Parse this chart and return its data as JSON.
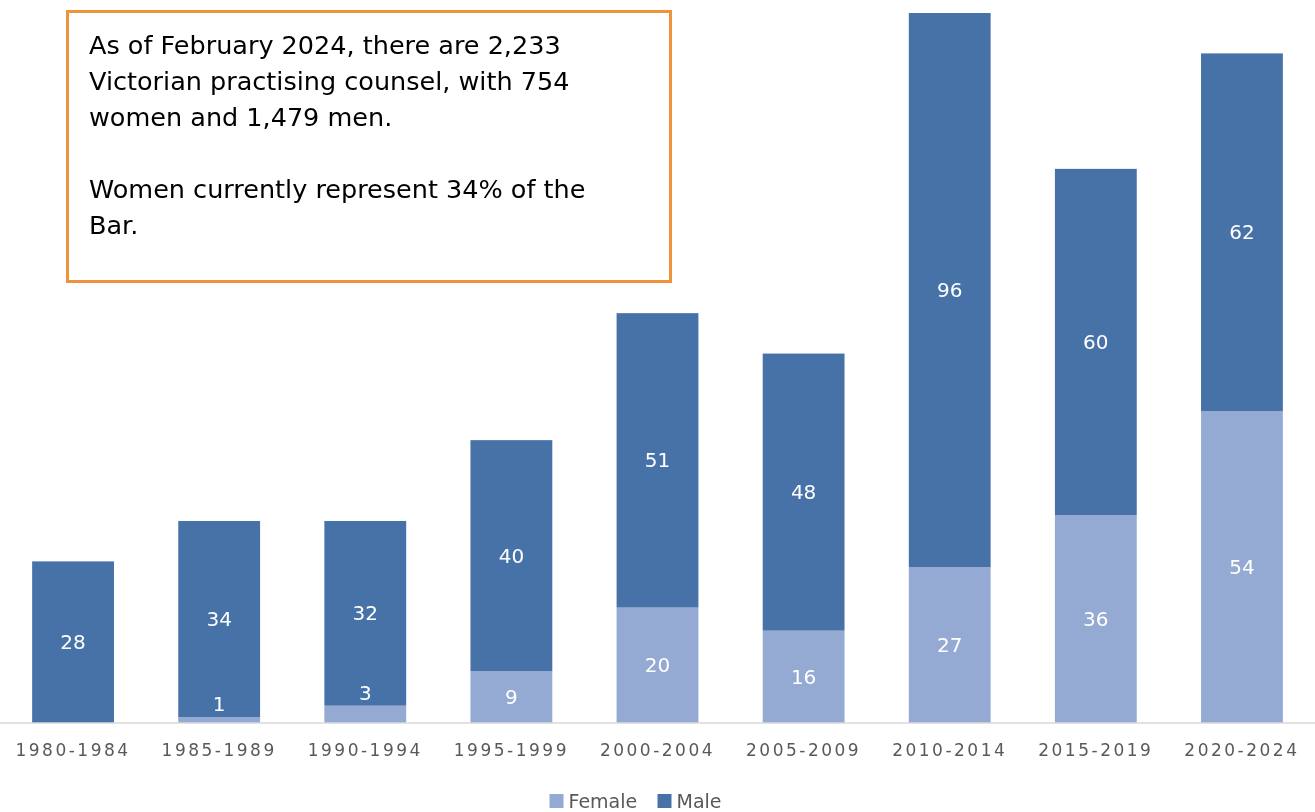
{
  "chart_data": {
    "type": "bar",
    "stacked": true,
    "legend": "bottom",
    "categories": [
      "1980-1984",
      "1985-1989",
      "1990-1994",
      "1995-1999",
      "2000-2004",
      "2005-2009",
      "2010-2014",
      "2015-2019",
      "2020-2024"
    ],
    "series": [
      {
        "name": "Female",
        "color": "#95aad3",
        "values": [
          0,
          1,
          3,
          9,
          20,
          16,
          27,
          36,
          54
        ],
        "value_labels": [
          null,
          "1",
          "3",
          "9",
          "20",
          "16",
          "27",
          "36",
          "54"
        ]
      },
      {
        "name": "Male",
        "color": "#4672a8",
        "values": [
          28,
          34,
          32,
          40,
          51,
          48,
          96,
          60,
          62
        ],
        "value_labels": [
          "28",
          "34",
          "32",
          "40",
          "51",
          "48",
          "96",
          "60",
          "62"
        ]
      }
    ],
    "annotations": [
      "As of February 2024, there are 2,233 Victorian practising counsel, with 754 women and 1,479 men.",
      "Women currently represent 34% of the Bar."
    ]
  }
}
